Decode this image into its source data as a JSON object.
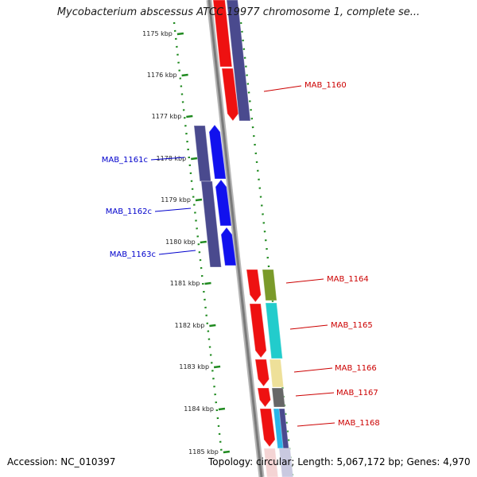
{
  "title": "Mycobacterium abscessus ATCC 19977 chromosome 1, complete se...",
  "footer": {
    "accession": "Accession: NC_010397",
    "topology": "Topology: circular; Length: 5,067,172 bp; Genes: 4,970"
  },
  "ruler": {
    "unit": "kbp",
    "ticks": [
      "1175 kbp",
      "1176 kbp",
      "1177 kbp",
      "1178 kbp",
      "1179 kbp",
      "1180 kbp",
      "1181 kbp",
      "1182 kbp",
      "1183 kbp",
      "1184 kbp",
      "1185 kbp"
    ]
  },
  "genes": [
    {
      "name": "MAB_1160",
      "strand": "+",
      "label_color": "#cc0000"
    },
    {
      "name": "MAB_1161c",
      "strand": "-",
      "label_color": "#0000cc"
    },
    {
      "name": "MAB_1162c",
      "strand": "-",
      "label_color": "#0000cc"
    },
    {
      "name": "MAB_1163c",
      "strand": "-",
      "label_color": "#0000cc"
    },
    {
      "name": "MAB_1164",
      "strand": "+",
      "label_color": "#cc0000"
    },
    {
      "name": "MAB_1165",
      "strand": "+",
      "label_color": "#cc0000"
    },
    {
      "name": "MAB_1166",
      "strand": "+",
      "label_color": "#cc0000"
    },
    {
      "name": "MAB_1167",
      "strand": "+",
      "label_color": "#cc0000"
    },
    {
      "name": "MAB_1168",
      "strand": "+",
      "label_color": "#cc0000"
    }
  ],
  "colors": {
    "forward_gene": "#ee1111",
    "reverse_gene": "#1111ee",
    "cog_band_slate": "#4a4a8e",
    "cog_band_olive": "#7a9a2a",
    "cog_band_cyan": "#22cccc",
    "cog_band_khaki": "#eee099",
    "cog_band_gray": "#666666",
    "cog_band_skyblue": "#2ab5e8",
    "ruler": "#1f8a1f",
    "backbone": "#888888"
  }
}
